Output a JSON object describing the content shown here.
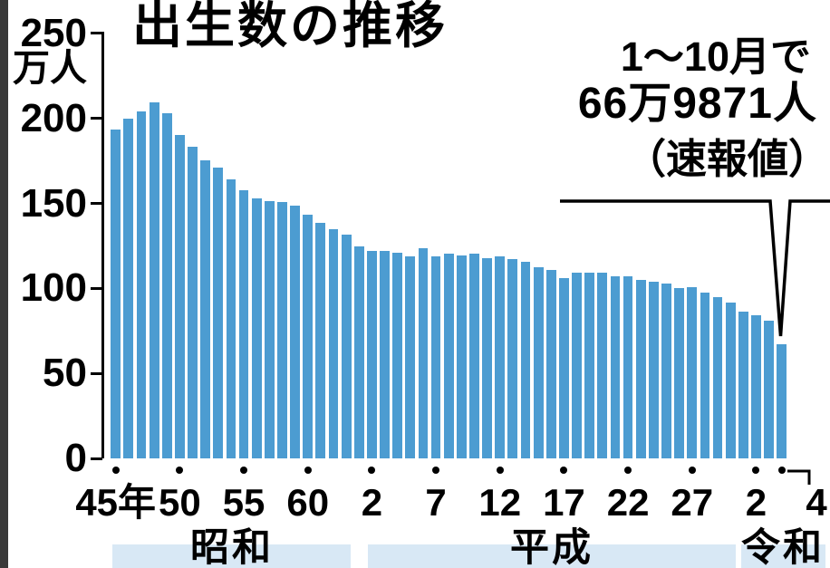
{
  "title": "出生数の推移",
  "y_axis": {
    "unit": "万人",
    "tick_labels": [
      "250",
      "200",
      "150",
      "100",
      "50",
      "0"
    ],
    "tick_values": [
      250,
      200,
      150,
      100,
      50,
      0
    ]
  },
  "x_axis": {
    "tick_labels": [
      "45年",
      "50",
      "55",
      "60",
      "2",
      "7",
      "12",
      "17",
      "22",
      "27",
      "2",
      "4"
    ],
    "tick_bar_indices": [
      0,
      5,
      10,
      15,
      20,
      25,
      30,
      35,
      40,
      45,
      50,
      52
    ]
  },
  "annotation": {
    "line1": "1〜10月で",
    "line2": "66万9871人",
    "line3": "（速報値）"
  },
  "eras": [
    {
      "name": "昭和"
    },
    {
      "name": "平成"
    },
    {
      "name": "令和"
    }
  ],
  "colors": {
    "bar": "#4c9cd1",
    "era_band": "#d8e8f5",
    "axis": "#000000",
    "screen_edge": "#3a3a3a"
  },
  "chart_data": {
    "type": "bar",
    "title": "出生数の推移",
    "ylabel": "万人",
    "ylim": [
      0,
      250
    ],
    "yticks": [
      0,
      50,
      100,
      150,
      200,
      250
    ],
    "grid": false,
    "legend": "none",
    "x_era_tick_labels": [
      "45年",
      "50",
      "55",
      "60",
      "2",
      "7",
      "12",
      "17",
      "22",
      "27",
      "2",
      "4"
    ],
    "x_era_tick_positions": [
      0,
      5,
      10,
      15,
      20,
      25,
      30,
      35,
      40,
      45,
      50,
      52
    ],
    "era_spans": [
      {
        "era": "昭和",
        "from_index": 0,
        "to_index": 18
      },
      {
        "era": "平成",
        "from_index": 19,
        "to_index": 48
      },
      {
        "era": "令和",
        "from_index": 49,
        "to_index": 52
      }
    ],
    "years": [
      1970,
      1971,
      1972,
      1973,
      1974,
      1975,
      1976,
      1977,
      1978,
      1979,
      1980,
      1981,
      1982,
      1983,
      1984,
      1985,
      1986,
      1987,
      1988,
      1989,
      1990,
      1991,
      1992,
      1993,
      1994,
      1995,
      1996,
      1997,
      1998,
      1999,
      2000,
      2001,
      2002,
      2003,
      2004,
      2005,
      2006,
      2007,
      2008,
      2009,
      2010,
      2011,
      2012,
      2013,
      2014,
      2015,
      2016,
      2017,
      2018,
      2019,
      2020,
      2021,
      2022
    ],
    "values_10k_persons": [
      193.4,
      200.1,
      203.9,
      209.2,
      203.0,
      190.1,
      183.3,
      175.5,
      170.9,
      164.3,
      157.7,
      152.9,
      151.5,
      150.9,
      148.9,
      143.2,
      138.3,
      134.7,
      131.4,
      124.7,
      122.2,
      122.3,
      120.9,
      118.8,
      123.8,
      118.7,
      120.6,
      119.2,
      120.3,
      117.8,
      119.1,
      117.1,
      115.4,
      112.4,
      111.1,
      106.3,
      109.3,
      109.0,
      109.1,
      107.0,
      107.1,
      105.1,
      103.7,
      103.0,
      100.4,
      100.6,
      97.7,
      94.6,
      91.8,
      86.5,
      84.1,
      81.2,
      67.0
    ],
    "last_bar_annotation": "1〜10月で66万9871人（速報値）"
  }
}
